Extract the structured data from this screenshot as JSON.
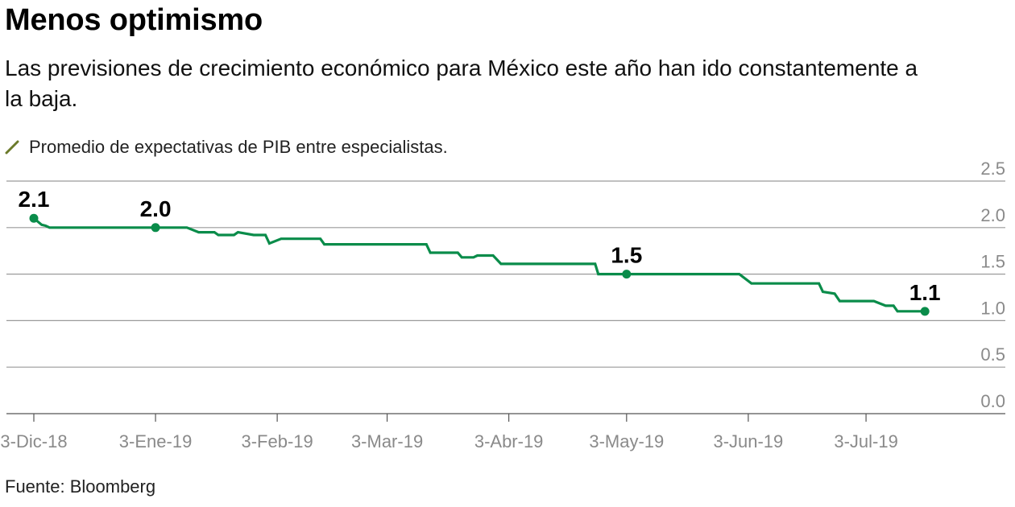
{
  "header": {
    "title": "Menos optimismo",
    "subtitle": "Las previsiones de crecimiento económico para México este año han ido constantemente a la baja."
  },
  "legend": {
    "icon": "slash-line-icon",
    "icon_color": "#6b7a2a",
    "label": "Promedio de expectativas de PIB entre especialistas."
  },
  "footer": {
    "source": "Fuente: Bloomberg"
  },
  "colors": {
    "line": "#0a8c4a",
    "grid": "#9a9a9a",
    "axis": "#555555",
    "tick_text": "#8a8a8a"
  },
  "chart_data": {
    "type": "line",
    "title": "Menos optimismo",
    "subtitle": "Las previsiones de crecimiento económico para México este año han ido constantemente a la baja.",
    "xlabel": "",
    "ylabel": "",
    "x_unit": "days since 3-Dic-18",
    "xlim": [
      -6,
      234
    ],
    "ylim": [
      0,
      2.5
    ],
    "yticks": [
      0.0,
      0.5,
      1.0,
      1.5,
      2.0,
      2.5
    ],
    "ytick_labels": [
      "0.0",
      "0.5",
      "1.0",
      "1.5",
      "2.0",
      "2.5"
    ],
    "y_axis_position": "right",
    "grid": true,
    "xticks": [
      0,
      31,
      62,
      90,
      121,
      151,
      182,
      212
    ],
    "xtick_labels": [
      "3-Dic-18",
      "3-Ene-19",
      "3-Feb-19",
      "3-Mar-19",
      "3-Abr-19",
      "3-May-19",
      "3-Jun-19",
      "3-Jul-19"
    ],
    "legend_position": "top-left",
    "series": [
      {
        "name": "Promedio de expectativas de PIB entre especialistas.",
        "x": [
          0,
          2,
          3,
          4,
          31,
          39,
          42,
          46,
          47,
          51,
          52,
          56,
          59,
          60,
          63,
          73,
          74,
          100,
          101,
          108,
          109,
          112,
          113,
          117,
          119,
          143,
          143.8,
          151,
          179.7,
          182.8,
          200,
          201,
          204,
          205.3,
          214,
          217,
          219,
          220,
          227
        ],
        "values": [
          2.1,
          2.03,
          2.02,
          2.0,
          2.0,
          2.0,
          1.95,
          1.95,
          1.92,
          1.92,
          1.95,
          1.92,
          1.92,
          1.83,
          1.88,
          1.88,
          1.82,
          1.82,
          1.73,
          1.73,
          1.68,
          1.68,
          1.7,
          1.7,
          1.61,
          1.61,
          1.5,
          1.5,
          1.5,
          1.4,
          1.4,
          1.31,
          1.29,
          1.21,
          1.21,
          1.16,
          1.16,
          1.1,
          1.1
        ]
      }
    ],
    "annotations": [
      {
        "x": 0,
        "value": 2.1,
        "label": "2.1"
      },
      {
        "x": 31,
        "value": 2.0,
        "label": "2.0"
      },
      {
        "x": 151,
        "value": 1.5,
        "label": "1.5"
      },
      {
        "x": 227,
        "value": 1.1,
        "label": "1.1"
      }
    ]
  }
}
